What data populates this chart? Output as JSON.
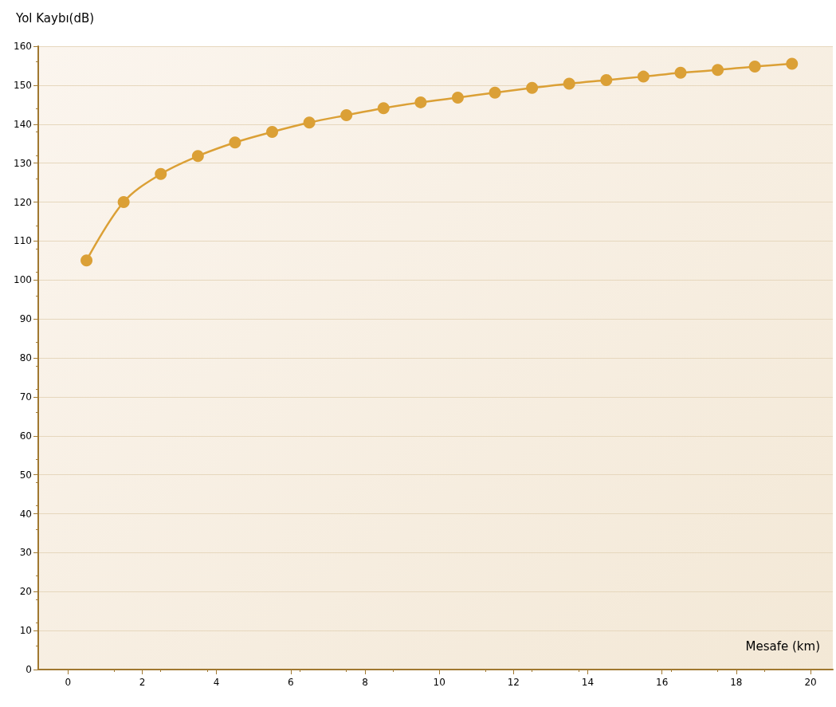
{
  "chart_data": {
    "type": "line",
    "xlabel": "Mesafe (km)",
    "ylabel": "Yol Kaybı(dB)",
    "x": [
      0.5,
      1.5,
      2.5,
      3.5,
      4.5,
      5.5,
      6.5,
      7.5,
      8.5,
      9.5,
      10.5,
      11.5,
      12.5,
      13.5,
      14.5,
      15.5,
      16.5,
      17.5,
      18.5,
      19.5
    ],
    "series": [
      {
        "color": "#dba036",
        "values": [
          105,
          120,
          127.2,
          131.8,
          135.3,
          138,
          140.4,
          142.3,
          144.1,
          145.6,
          146.8,
          148.1,
          149.3,
          150.4,
          151.3,
          152.2,
          153.2,
          153.9,
          154.8,
          155.5
        ]
      }
    ],
    "xlim": [
      -0.8,
      20.6
    ],
    "xticks": [
      0,
      2,
      4,
      6,
      8,
      10,
      12,
      14,
      16,
      18,
      20
    ],
    "ylim": [
      0,
      160
    ],
    "yticks": [
      0,
      10,
      20,
      30,
      40,
      50,
      60,
      70,
      80,
      90,
      100,
      110,
      120,
      130,
      140,
      150,
      160
    ],
    "grid": "y",
    "marker": "circle",
    "line_style": "solid"
  }
}
